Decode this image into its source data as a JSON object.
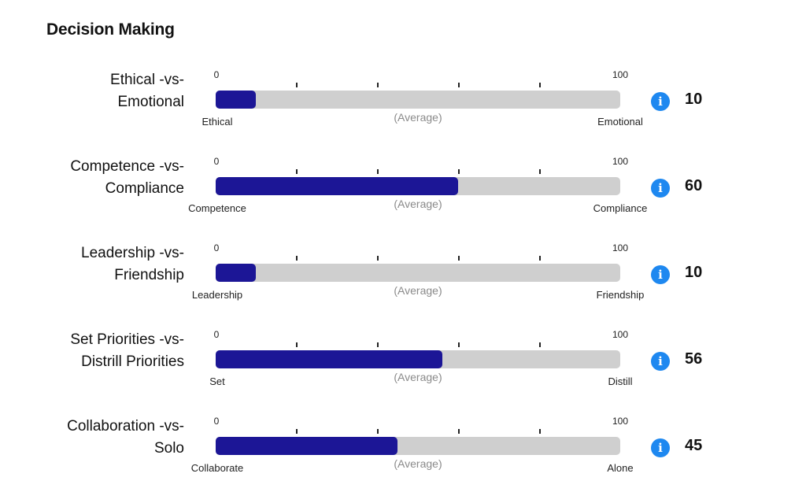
{
  "page": {
    "title": "Decision Making"
  },
  "scale": {
    "min_label": "0",
    "max_label": "100",
    "average_label": "(Average)"
  },
  "colors": {
    "fill": "#1c1696",
    "track": "#cfcfcf",
    "info": "#1e88f0"
  },
  "info_icon": "info-icon",
  "rows": [
    {
      "label_line1": "Ethical -vs-",
      "label_line2": "Emotional",
      "left_label": "Ethical",
      "right_label": "Emotional",
      "score": 10,
      "score_text": "10"
    },
    {
      "label_line1": "Competence -vs-",
      "label_line2": "Compliance",
      "left_label": "Competence",
      "right_label": "Compliance",
      "score": 60,
      "score_text": "60"
    },
    {
      "label_line1": "Leadership -vs-",
      "label_line2": "Friendship",
      "left_label": "Leadership",
      "right_label": "Friendship",
      "score": 10,
      "score_text": "10"
    },
    {
      "label_line1": "Set Priorities -vs-",
      "label_line2": "Distrill Priorities",
      "left_label": "Set",
      "right_label": "Distill",
      "score": 56,
      "score_text": "56"
    },
    {
      "label_line1": "Collaboration -vs-",
      "label_line2": "Solo",
      "left_label": "Collaborate",
      "right_label": "Alone",
      "score": 45,
      "score_text": "45"
    }
  ]
}
